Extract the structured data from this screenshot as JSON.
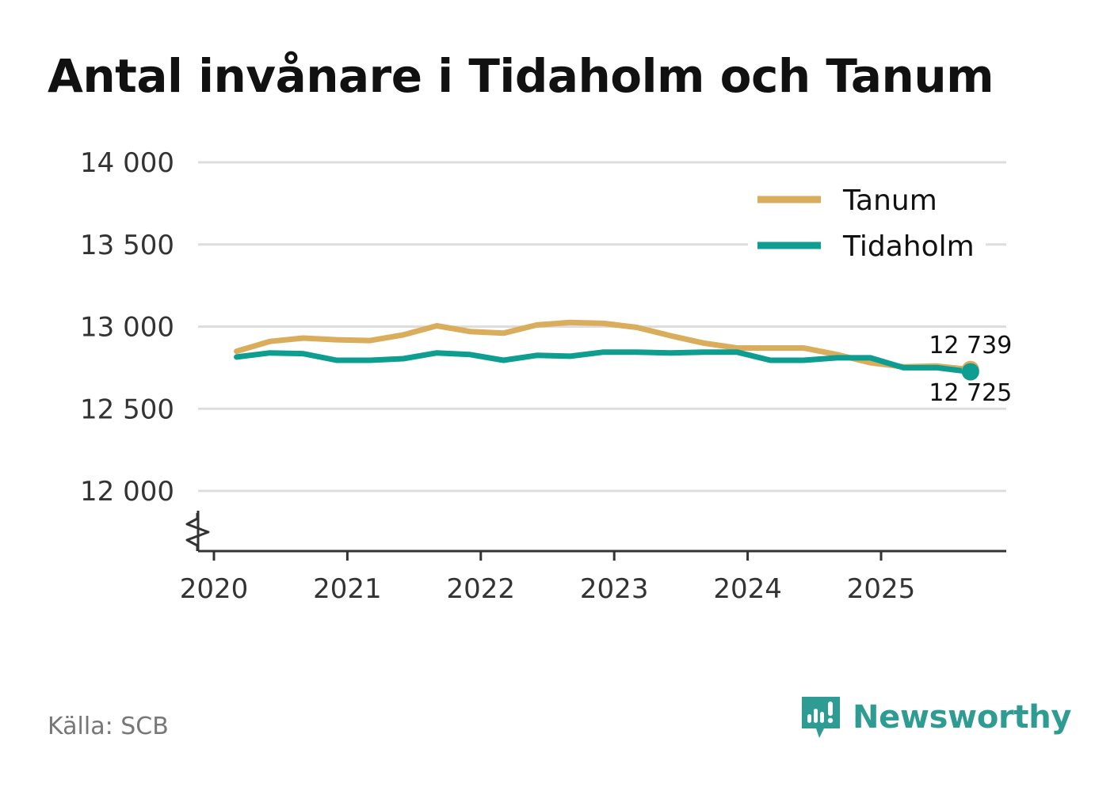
{
  "chart_data": {
    "type": "line",
    "title": "Antal invånare i Tidaholm och Tanum",
    "xlabel": "",
    "ylabel": "",
    "ylim": [
      11650,
      14000
    ],
    "xlim": [
      2019.9,
      2025.95
    ],
    "y_ticks": [
      {
        "value": 14000,
        "label": "14 000"
      },
      {
        "value": 13500,
        "label": "13 500"
      },
      {
        "value": 13000,
        "label": "13 000"
      },
      {
        "value": 12500,
        "label": "12 500"
      },
      {
        "value": 12000,
        "label": "12 000"
      }
    ],
    "x_ticks": [
      {
        "value": 2020,
        "label": "2020"
      },
      {
        "value": 2021,
        "label": "2021"
      },
      {
        "value": 2022,
        "label": "2022"
      },
      {
        "value": 2023,
        "label": "2023"
      },
      {
        "value": 2024,
        "label": "2024"
      },
      {
        "value": 2025,
        "label": "2025"
      }
    ],
    "axis_break": true,
    "grid": true,
    "legend_position": "top-right",
    "x": [
      2020.17,
      2020.42,
      2020.67,
      2020.92,
      2021.17,
      2021.42,
      2021.67,
      2021.92,
      2022.17,
      2022.42,
      2022.67,
      2022.92,
      2023.17,
      2023.42,
      2023.67,
      2023.92,
      2024.17,
      2024.42,
      2024.67,
      2024.92,
      2025.17,
      2025.42,
      2025.67
    ],
    "series": [
      {
        "name": "Tanum",
        "color": "#d9ad5b",
        "values": [
          12850,
          12910,
          12930,
          12920,
          12915,
          12950,
          13005,
          12970,
          12960,
          13010,
          13025,
          13020,
          12995,
          12945,
          12900,
          12870,
          12870,
          12870,
          12830,
          12780,
          12755,
          12760,
          12739
        ]
      },
      {
        "name": "Tidaholm",
        "color": "#0d9e91",
        "values": [
          12815,
          12840,
          12835,
          12795,
          12795,
          12805,
          12840,
          12830,
          12795,
          12825,
          12820,
          12845,
          12845,
          12840,
          12845,
          12845,
          12795,
          12795,
          12810,
          12810,
          12750,
          12750,
          12725
        ]
      }
    ],
    "annotations": [
      {
        "series": "Tanum",
        "text": "12 739",
        "value": 12739,
        "placement": "above"
      },
      {
        "series": "Tidaholm",
        "text": "12 725",
        "value": 12725,
        "placement": "below"
      }
    ]
  },
  "footer": {
    "source": "Källa: SCB",
    "brand": "Newsworthy"
  },
  "colors": {
    "title": "#111111",
    "grid": "#dddddd",
    "axis": "#333333",
    "tick_label": "#333333",
    "source": "#777777",
    "brand": "#2f9c94"
  },
  "icons": {
    "brand_logo": "newsworthy-logo-icon"
  }
}
